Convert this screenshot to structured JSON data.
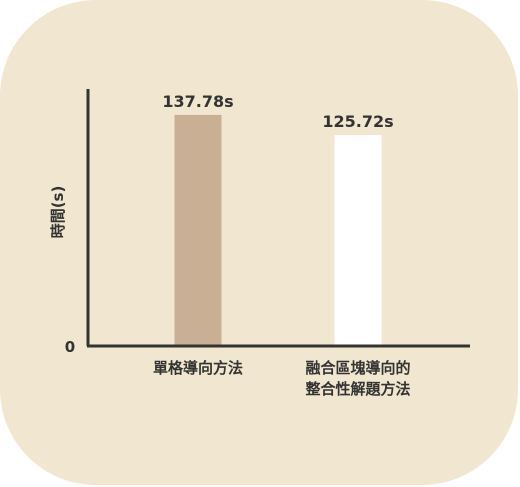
{
  "chart_data": {
    "type": "bar",
    "categories": [
      [
        "單格導向方法"
      ],
      [
        "融合區塊導向的",
        "整合性解題方法"
      ]
    ],
    "values": [
      137.78,
      125.72
    ],
    "value_labels": [
      "137.78s",
      "125.72s"
    ],
    "ylabel": "時間(s)",
    "y_tick_labels": [
      "0"
    ],
    "bar_colors": [
      "#c9b095",
      "#ffffff"
    ],
    "background": "#f1e6cf",
    "axis_color": "#333333",
    "grid": false,
    "legend": "none"
  }
}
